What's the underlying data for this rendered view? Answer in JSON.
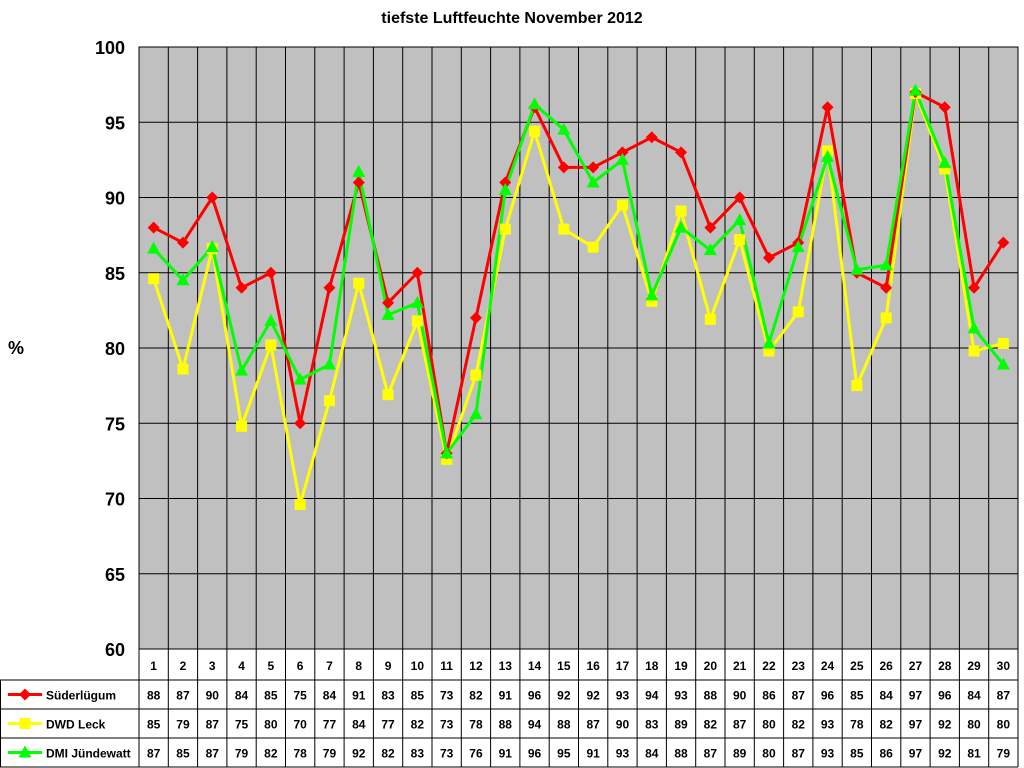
{
  "chart_data": {
    "type": "line",
    "title": "tiefste Luftfeuchte November 2012",
    "ylabel": "%",
    "xlabel": "",
    "ylim": [
      60,
      100
    ],
    "ytick_step": 5,
    "grid": true,
    "plot_background": "#c0c0c0",
    "categories": [
      "1",
      "2",
      "3",
      "4",
      "5",
      "6",
      "7",
      "8",
      "9",
      "10",
      "11",
      "12",
      "13",
      "14",
      "15",
      "16",
      "17",
      "18",
      "19",
      "20",
      "21",
      "22",
      "23",
      "24",
      "25",
      "26",
      "27",
      "28",
      "29",
      "30"
    ],
    "series": [
      {
        "name": "Süderlügum",
        "color": "#ff0000",
        "marker": "diamond",
        "values": [
          88,
          87,
          90,
          84,
          85,
          75,
          84,
          91,
          83,
          85,
          73,
          82,
          91,
          96,
          92,
          92,
          93,
          94,
          93,
          88,
          90,
          86,
          87,
          96,
          85,
          84,
          97,
          96,
          84,
          87
        ],
        "labels": [
          "88",
          "87",
          "90",
          "84",
          "85",
          "75",
          "84",
          "91",
          "83",
          "85",
          "73",
          "82",
          "91",
          "96",
          "92",
          "92",
          "93",
          "94",
          "93",
          "88",
          "90",
          "86",
          "87",
          "96",
          "85",
          "84",
          "97",
          "96",
          "84",
          "87"
        ]
      },
      {
        "name": "DWD Leck",
        "color": "#ffff00",
        "marker": "square",
        "values": [
          84.6,
          78.6,
          86.6,
          74.8,
          80.2,
          69.6,
          76.5,
          84.3,
          76.9,
          81.8,
          72.6,
          78.2,
          87.9,
          94.4,
          87.9,
          86.7,
          89.5,
          83.1,
          89.1,
          81.9,
          87.2,
          79.8,
          82.4,
          93.1,
          77.5,
          82.0,
          96.9,
          91.9,
          79.8,
          80.3
        ],
        "labels": [
          "85",
          "79",
          "87",
          "75",
          "80",
          "70",
          "77",
          "84",
          "77",
          "82",
          "73",
          "78",
          "88",
          "94",
          "88",
          "87",
          "90",
          "83",
          "89",
          "82",
          "87",
          "80",
          "82",
          "93",
          "78",
          "82",
          "97",
          "92",
          "80",
          "80"
        ]
      },
      {
        "name": "DMI Jündewatt",
        "color": "#00ff00",
        "marker": "triangle",
        "values": [
          86.6,
          84.5,
          86.7,
          78.5,
          81.8,
          77.9,
          78.9,
          91.7,
          82.2,
          83.0,
          73.0,
          75.6,
          90.5,
          96.2,
          94.5,
          91.0,
          92.5,
          83.5,
          88.0,
          86.5,
          88.5,
          80.3,
          86.7,
          92.7,
          85.2,
          85.5,
          97.1,
          92.3,
          81.3,
          78.9
        ],
        "labels": [
          "87",
          "85",
          "87",
          "79",
          "82",
          "78",
          "79",
          "92",
          "82",
          "83",
          "73",
          "76",
          "91",
          "96",
          "95",
          "91",
          "93",
          "84",
          "88",
          "87",
          "89",
          "80",
          "87",
          "93",
          "85",
          "86",
          "97",
          "92",
          "81",
          "79"
        ]
      }
    ]
  }
}
